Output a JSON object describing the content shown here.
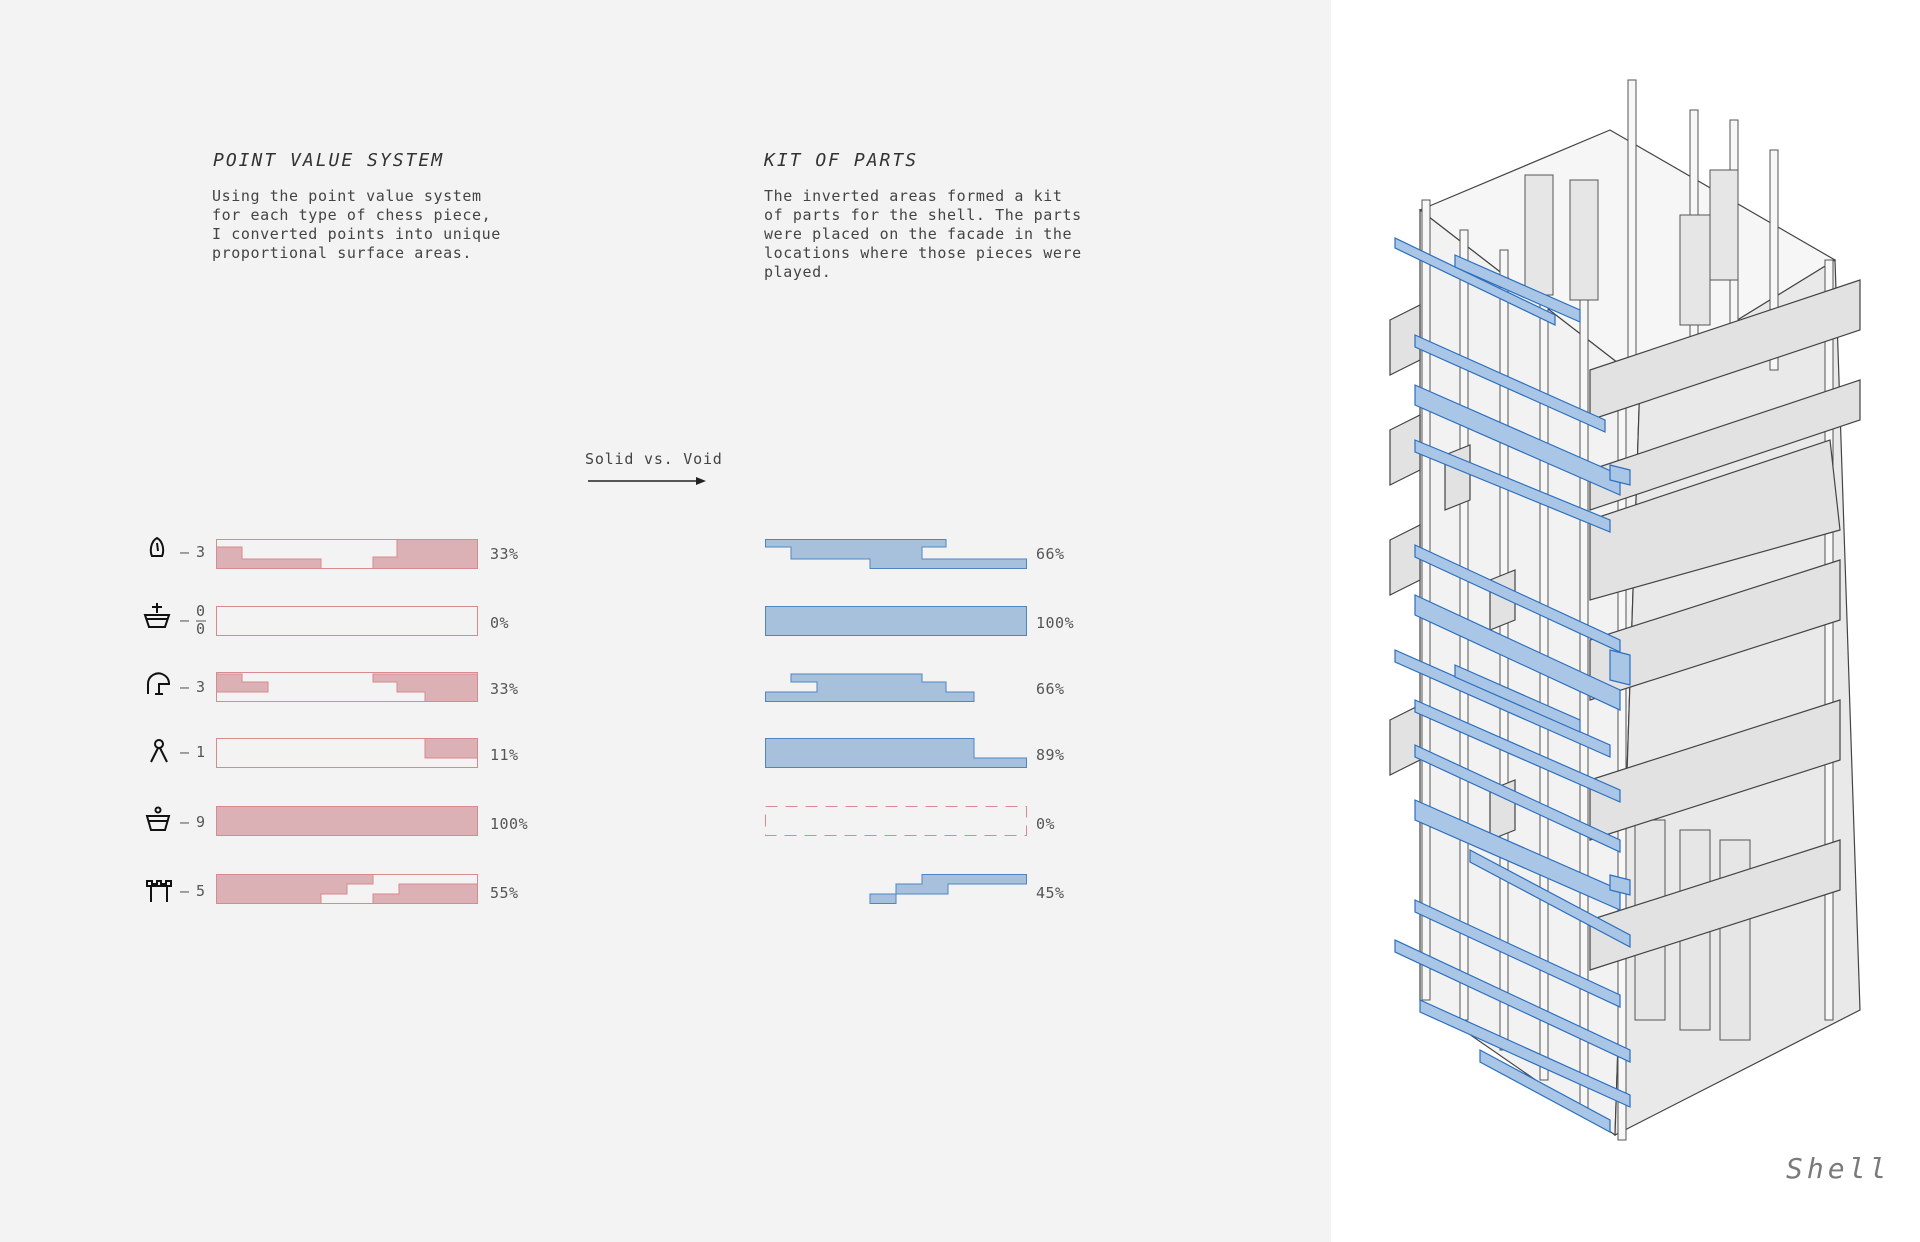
{
  "left": {
    "point_value": {
      "title": "POINT VALUE SYSTEM",
      "body": "Using the point value system\nfor each type of chess piece,\nI converted points into unique\nproportional surface areas."
    },
    "kit_of_parts": {
      "title": "KIT OF PARTS",
      "body": "The inverted areas formed a kit\nof parts for the shell. The parts\nwere placed on the facade in the\nlocations where those pieces were\nplayed."
    },
    "transition_label": "Solid vs. Void",
    "rows": [
      {
        "piece_icon": "bishop-icon",
        "score": "3",
        "solid_pct": "33%",
        "void_pct": "66%",
        "solid": 0.33,
        "void": 0.66
      },
      {
        "piece_icon": "king-icon",
        "score_top": "0",
        "score_bottom": "0",
        "solid_pct": "0%",
        "void_pct": "100%",
        "solid": 0.0,
        "void": 1.0
      },
      {
        "piece_icon": "knight-icon",
        "score": "3",
        "solid_pct": "33%",
        "void_pct": "66%",
        "solid": 0.33,
        "void": 0.66
      },
      {
        "piece_icon": "pawn-icon",
        "score": "1",
        "solid_pct": "11%",
        "void_pct": "89%",
        "solid": 0.11,
        "void": 0.89
      },
      {
        "piece_icon": "queen-icon",
        "score": "9",
        "solid_pct": "100%",
        "void_pct": "0%",
        "solid": 1.0,
        "void": 0.0
      },
      {
        "piece_icon": "rook-icon",
        "score": "5",
        "solid_pct": "55%",
        "void_pct": "45%",
        "solid": 0.55,
        "void": 0.45
      }
    ]
  },
  "right": {
    "caption": "Shell",
    "illustration": "axonometric-shell-tower"
  },
  "colors": {
    "solid_fill": "#dcb1b5",
    "solid_stroke": "#d98a8f",
    "void_fill": "#a7c1dc",
    "void_stroke": "#4f86c1",
    "background_left": "#f3f3f3"
  }
}
